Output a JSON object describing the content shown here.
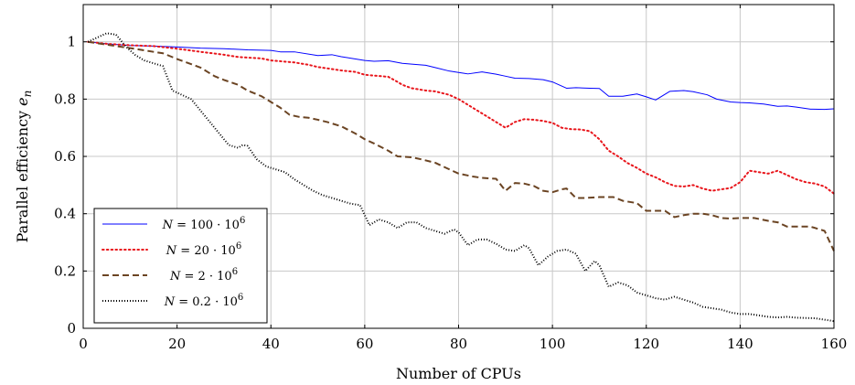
{
  "chart_data": {
    "type": "line",
    "title": "",
    "xlabel": "Number of CPUs",
    "ylabel": "Parallel efficiency e_n",
    "ylabel_main": "Parallel efficiency ",
    "ylabel_sym": "e",
    "ylabel_sub": "n",
    "xlim": [
      0,
      160
    ],
    "ylim": [
      0,
      1.13
    ],
    "xticks": [
      0,
      20,
      40,
      60,
      80,
      100,
      120,
      140,
      160
    ],
    "xtick_labels": [
      "0",
      "20",
      "40",
      "60",
      "80",
      "100",
      "120",
      "140",
      "160"
    ],
    "yticks": [
      0,
      0.2,
      0.4,
      0.6,
      0.8,
      1
    ],
    "ytick_labels": [
      "0",
      "0.2",
      "0.4",
      "0.6",
      "0.8",
      "1"
    ],
    "grid": true,
    "legend_position": "bottom-left",
    "series": [
      {
        "name": "N = 100 · 10^6",
        "legend_label": {
          "sym": "N",
          "rest": " = 100 · 10",
          "sup": "6"
        },
        "color": "#0000ff",
        "style": "solid",
        "points": [
          [
            1,
            1.0
          ],
          [
            5,
            0.993
          ],
          [
            10,
            0.987
          ],
          [
            15,
            0.985
          ],
          [
            20,
            0.982
          ],
          [
            25,
            0.978
          ],
          [
            30,
            0.976
          ],
          [
            35,
            0.972
          ],
          [
            40,
            0.97
          ],
          [
            42,
            0.965
          ],
          [
            45,
            0.965
          ],
          [
            50,
            0.952
          ],
          [
            53,
            0.955
          ],
          [
            55,
            0.948
          ],
          [
            60,
            0.935
          ],
          [
            62,
            0.932
          ],
          [
            65,
            0.934
          ],
          [
            68,
            0.925
          ],
          [
            70,
            0.922
          ],
          [
            73,
            0.918
          ],
          [
            75,
            0.91
          ],
          [
            78,
            0.898
          ],
          [
            80,
            0.893
          ],
          [
            82,
            0.888
          ],
          [
            85,
            0.895
          ],
          [
            88,
            0.887
          ],
          [
            90,
            0.88
          ],
          [
            92,
            0.873
          ],
          [
            95,
            0.872
          ],
          [
            98,
            0.868
          ],
          [
            100,
            0.86
          ],
          [
            103,
            0.838
          ],
          [
            105,
            0.84
          ],
          [
            108,
            0.838
          ],
          [
            110,
            0.837
          ],
          [
            112,
            0.81
          ],
          [
            115,
            0.81
          ],
          [
            118,
            0.818
          ],
          [
            120,
            0.808
          ],
          [
            122,
            0.797
          ],
          [
            125,
            0.827
          ],
          [
            128,
            0.83
          ],
          [
            130,
            0.826
          ],
          [
            133,
            0.815
          ],
          [
            135,
            0.8
          ],
          [
            138,
            0.79
          ],
          [
            140,
            0.788
          ],
          [
            142,
            0.787
          ],
          [
            145,
            0.783
          ],
          [
            148,
            0.775
          ],
          [
            150,
            0.776
          ],
          [
            152,
            0.772
          ],
          [
            155,
            0.765
          ],
          [
            158,
            0.764
          ],
          [
            160,
            0.766
          ]
        ]
      },
      {
        "name": "N = 20 · 10^6",
        "legend_label": {
          "sym": "N",
          "rest": " = 20 · 10",
          "sup": "6"
        },
        "color": "#e8151b",
        "style": "dotted",
        "points": [
          [
            1,
            1.0
          ],
          [
            5,
            0.993
          ],
          [
            10,
            0.988
          ],
          [
            15,
            0.985
          ],
          [
            20,
            0.976
          ],
          [
            25,
            0.965
          ],
          [
            30,
            0.955
          ],
          [
            33,
            0.947
          ],
          [
            35,
            0.945
          ],
          [
            38,
            0.942
          ],
          [
            40,
            0.935
          ],
          [
            45,
            0.928
          ],
          [
            48,
            0.92
          ],
          [
            50,
            0.912
          ],
          [
            53,
            0.905
          ],
          [
            55,
            0.9
          ],
          [
            58,
            0.895
          ],
          [
            60,
            0.885
          ],
          [
            62,
            0.882
          ],
          [
            65,
            0.878
          ],
          [
            67,
            0.86
          ],
          [
            68,
            0.85
          ],
          [
            70,
            0.838
          ],
          [
            73,
            0.83
          ],
          [
            75,
            0.827
          ],
          [
            78,
            0.815
          ],
          [
            80,
            0.8
          ],
          [
            82,
            0.78
          ],
          [
            84,
            0.76
          ],
          [
            85,
            0.75
          ],
          [
            87,
            0.73
          ],
          [
            89,
            0.71
          ],
          [
            90,
            0.7
          ],
          [
            92,
            0.72
          ],
          [
            94,
            0.73
          ],
          [
            96,
            0.728
          ],
          [
            98,
            0.724
          ],
          [
            100,
            0.717
          ],
          [
            102,
            0.7
          ],
          [
            104,
            0.695
          ],
          [
            106,
            0.694
          ],
          [
            108,
            0.688
          ],
          [
            110,
            0.66
          ],
          [
            112,
            0.62
          ],
          [
            114,
            0.6
          ],
          [
            116,
            0.577
          ],
          [
            118,
            0.56
          ],
          [
            120,
            0.54
          ],
          [
            122,
            0.527
          ],
          [
            124,
            0.51
          ],
          [
            126,
            0.497
          ],
          [
            128,
            0.495
          ],
          [
            130,
            0.5
          ],
          [
            132,
            0.488
          ],
          [
            134,
            0.48
          ],
          [
            136,
            0.485
          ],
          [
            138,
            0.49
          ],
          [
            140,
            0.51
          ],
          [
            142,
            0.55
          ],
          [
            144,
            0.545
          ],
          [
            146,
            0.54
          ],
          [
            148,
            0.55
          ],
          [
            150,
            0.535
          ],
          [
            152,
            0.52
          ],
          [
            154,
            0.51
          ],
          [
            156,
            0.505
          ],
          [
            158,
            0.495
          ],
          [
            160,
            0.47
          ]
        ]
      },
      {
        "name": "N = 2 · 10^6",
        "legend_label": {
          "sym": "N",
          "rest": " = 2 · 10",
          "sup": "6"
        },
        "color": "#6b4423",
        "style": "dashed",
        "points": [
          [
            1,
            1.0
          ],
          [
            5,
            0.99
          ],
          [
            10,
            0.978
          ],
          [
            15,
            0.965
          ],
          [
            17,
            0.96
          ],
          [
            20,
            0.94
          ],
          [
            25,
            0.91
          ],
          [
            28,
            0.88
          ],
          [
            30,
            0.867
          ],
          [
            33,
            0.85
          ],
          [
            35,
            0.83
          ],
          [
            38,
            0.81
          ],
          [
            40,
            0.79
          ],
          [
            42,
            0.77
          ],
          [
            44,
            0.745
          ],
          [
            46,
            0.738
          ],
          [
            48,
            0.735
          ],
          [
            50,
            0.728
          ],
          [
            52,
            0.72
          ],
          [
            55,
            0.705
          ],
          [
            58,
            0.68
          ],
          [
            60,
            0.66
          ],
          [
            62,
            0.645
          ],
          [
            65,
            0.62
          ],
          [
            67,
            0.6
          ],
          [
            70,
            0.597
          ],
          [
            72,
            0.59
          ],
          [
            75,
            0.578
          ],
          [
            78,
            0.555
          ],
          [
            80,
            0.54
          ],
          [
            83,
            0.53
          ],
          [
            85,
            0.525
          ],
          [
            88,
            0.522
          ],
          [
            90,
            0.48
          ],
          [
            92,
            0.507
          ],
          [
            94,
            0.505
          ],
          [
            96,
            0.497
          ],
          [
            98,
            0.48
          ],
          [
            100,
            0.475
          ],
          [
            102,
            0.485
          ],
          [
            103,
            0.488
          ],
          [
            105,
            0.455
          ],
          [
            107,
            0.455
          ],
          [
            110,
            0.458
          ],
          [
            113,
            0.458
          ],
          [
            115,
            0.445
          ],
          [
            118,
            0.437
          ],
          [
            120,
            0.41
          ],
          [
            122,
            0.41
          ],
          [
            124,
            0.41
          ],
          [
            126,
            0.388
          ],
          [
            128,
            0.395
          ],
          [
            130,
            0.4
          ],
          [
            132,
            0.4
          ],
          [
            134,
            0.395
          ],
          [
            136,
            0.385
          ],
          [
            138,
            0.383
          ],
          [
            140,
            0.385
          ],
          [
            143,
            0.385
          ],
          [
            146,
            0.375
          ],
          [
            148,
            0.37
          ],
          [
            150,
            0.355
          ],
          [
            152,
            0.355
          ],
          [
            155,
            0.355
          ],
          [
            158,
            0.34
          ],
          [
            160,
            0.27
          ]
        ]
      },
      {
        "name": "N = 0.2 · 10^6",
        "legend_label": {
          "sym": "N",
          "rest": " = 0.2 · 10",
          "sup": "6"
        },
        "color": "#000000",
        "style": "densely-dotted",
        "points": [
          [
            1,
            1.0
          ],
          [
            3,
            1.015
          ],
          [
            5,
            1.03
          ],
          [
            7,
            1.025
          ],
          [
            9,
            0.985
          ],
          [
            11,
            0.955
          ],
          [
            13,
            0.935
          ],
          [
            15,
            0.925
          ],
          [
            17,
            0.915
          ],
          [
            19,
            0.83
          ],
          [
            21,
            0.815
          ],
          [
            23,
            0.8
          ],
          [
            25,
            0.76
          ],
          [
            27,
            0.72
          ],
          [
            29,
            0.68
          ],
          [
            31,
            0.64
          ],
          [
            33,
            0.63
          ],
          [
            34,
            0.64
          ],
          [
            35,
            0.637
          ],
          [
            37,
            0.59
          ],
          [
            39,
            0.565
          ],
          [
            41,
            0.555
          ],
          [
            43,
            0.545
          ],
          [
            45,
            0.52
          ],
          [
            47,
            0.5
          ],
          [
            49,
            0.48
          ],
          [
            51,
            0.465
          ],
          [
            53,
            0.455
          ],
          [
            55,
            0.445
          ],
          [
            57,
            0.435
          ],
          [
            59,
            0.43
          ],
          [
            61,
            0.36
          ],
          [
            63,
            0.38
          ],
          [
            65,
            0.37
          ],
          [
            67,
            0.35
          ],
          [
            69,
            0.37
          ],
          [
            71,
            0.37
          ],
          [
            73,
            0.35
          ],
          [
            75,
            0.34
          ],
          [
            77,
            0.33
          ],
          [
            79,
            0.345
          ],
          [
            80,
            0.335
          ],
          [
            82,
            0.29
          ],
          [
            84,
            0.31
          ],
          [
            86,
            0.31
          ],
          [
            88,
            0.295
          ],
          [
            90,
            0.275
          ],
          [
            92,
            0.27
          ],
          [
            94,
            0.29
          ],
          [
            95,
            0.28
          ],
          [
            97,
            0.22
          ],
          [
            99,
            0.25
          ],
          [
            101,
            0.27
          ],
          [
            103,
            0.275
          ],
          [
            105,
            0.26
          ],
          [
            107,
            0.2
          ],
          [
            109,
            0.235
          ],
          [
            110,
            0.22
          ],
          [
            112,
            0.145
          ],
          [
            114,
            0.16
          ],
          [
            116,
            0.15
          ],
          [
            118,
            0.125
          ],
          [
            120,
            0.115
          ],
          [
            122,
            0.105
          ],
          [
            124,
            0.1
          ],
          [
            126,
            0.11
          ],
          [
            128,
            0.1
          ],
          [
            130,
            0.09
          ],
          [
            132,
            0.075
          ],
          [
            134,
            0.07
          ],
          [
            136,
            0.065
          ],
          [
            138,
            0.055
          ],
          [
            140,
            0.05
          ],
          [
            142,
            0.05
          ],
          [
            144,
            0.045
          ],
          [
            146,
            0.04
          ],
          [
            148,
            0.038
          ],
          [
            150,
            0.04
          ],
          [
            152,
            0.037
          ],
          [
            154,
            0.036
          ],
          [
            156,
            0.035
          ],
          [
            158,
            0.03
          ],
          [
            160,
            0.025
          ]
        ]
      }
    ]
  }
}
